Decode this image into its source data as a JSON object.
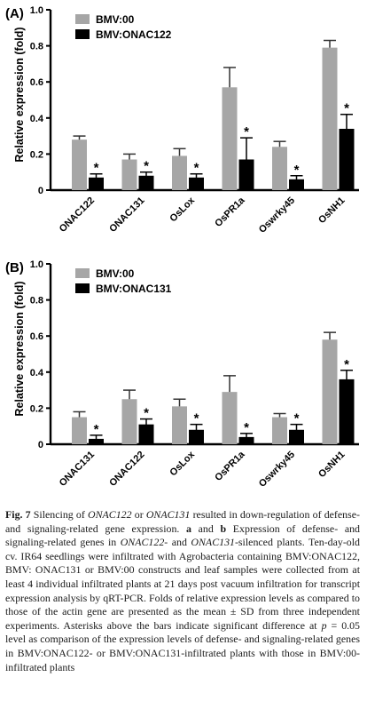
{
  "chart_data": [
    {
      "type": "bar",
      "panel_label": "(A)",
      "ylabel": "Relative expression (fold)",
      "ylim": [
        0,
        1.0
      ],
      "yticks": [
        "0",
        "0.2",
        "0.4",
        "0.6",
        "0.8",
        "1.0"
      ],
      "categories": [
        "ONAC122",
        "ONAC131",
        "OsLox",
        "OsPR1a",
        "Oswrky45",
        "OsNH1"
      ],
      "legend_position": "top-left",
      "colors": [
        "#a6a6a6",
        "#000000"
      ],
      "series": [
        {
          "name": "BMV:00",
          "values": [
            0.28,
            0.17,
            0.19,
            0.57,
            0.24,
            0.79
          ],
          "errors": [
            0.02,
            0.03,
            0.04,
            0.11,
            0.03,
            0.04
          ]
        },
        {
          "name": "BMV:ONAC122",
          "values": [
            0.07,
            0.08,
            0.07,
            0.17,
            0.06,
            0.34
          ],
          "errors": [
            0.02,
            0.02,
            0.02,
            0.12,
            0.02,
            0.08
          ]
        }
      ],
      "significance": [
        "*",
        "*",
        "*",
        "*",
        "*",
        "*"
      ]
    },
    {
      "type": "bar",
      "panel_label": "(B)",
      "ylabel": "Relative expression (fold)",
      "ylim": [
        0,
        1.0
      ],
      "yticks": [
        "0",
        "0.2",
        "0.4",
        "0.6",
        "0.8",
        "1.0"
      ],
      "categories": [
        "ONAC131",
        "ONAC122",
        "OsLox",
        "OsPR1a",
        "Oswrky45",
        "OsNH1"
      ],
      "legend_position": "top-left",
      "colors": [
        "#a6a6a6",
        "#000000"
      ],
      "series": [
        {
          "name": "BMV:00",
          "values": [
            0.15,
            0.25,
            0.21,
            0.29,
            0.15,
            0.58
          ],
          "errors": [
            0.03,
            0.05,
            0.04,
            0.09,
            0.02,
            0.04
          ]
        },
        {
          "name": "BMV:ONAC131",
          "values": [
            0.03,
            0.11,
            0.08,
            0.04,
            0.08,
            0.36
          ],
          "errors": [
            0.02,
            0.03,
            0.03,
            0.02,
            0.03,
            0.05
          ]
        }
      ],
      "significance": [
        "*",
        "*",
        "*",
        "*",
        "*",
        "*"
      ]
    }
  ],
  "caption": {
    "fig_label": "Fig. 7",
    "segments": [
      {
        "t": " Silencing of "
      },
      {
        "t": "ONAC122",
        "i": true
      },
      {
        "t": " or "
      },
      {
        "t": "ONAC131",
        "i": true
      },
      {
        "t": " resulted in down-regulation of defense- and signaling-related gene expression. "
      },
      {
        "t": "a",
        "b": true
      },
      {
        "t": " and "
      },
      {
        "t": "b",
        "b": true
      },
      {
        "t": " Expression of defense- and signaling-related genes in "
      },
      {
        "t": "ONAC122",
        "i": true
      },
      {
        "t": "- and "
      },
      {
        "t": "ONAC131",
        "i": true
      },
      {
        "t": "-silenced plants. Ten-day-old cv. IR64 seedlings were infiltrated with Agrobacteria containing BMV:ONAC122, BMV: ONAC131 or BMV:00 constructs and leaf samples were collected from at least 4 individual infiltrated plants at 21 days post vacuum infiltration for transcript expression analysis by qRT-PCR. Folds of relative expression levels as compared to those of the actin gene are presented as the mean ± SD from three independent experiments. Asterisks above the bars indicate significant difference at "
      },
      {
        "t": "p",
        "i": true
      },
      {
        "t": " = 0.05 level as comparison of the expression levels of defense- and signaling-related genes in BMV:ONAC122- or BMV:ONAC131-infiltrated plants with those in BMV:00-infiltrated plants"
      }
    ]
  }
}
